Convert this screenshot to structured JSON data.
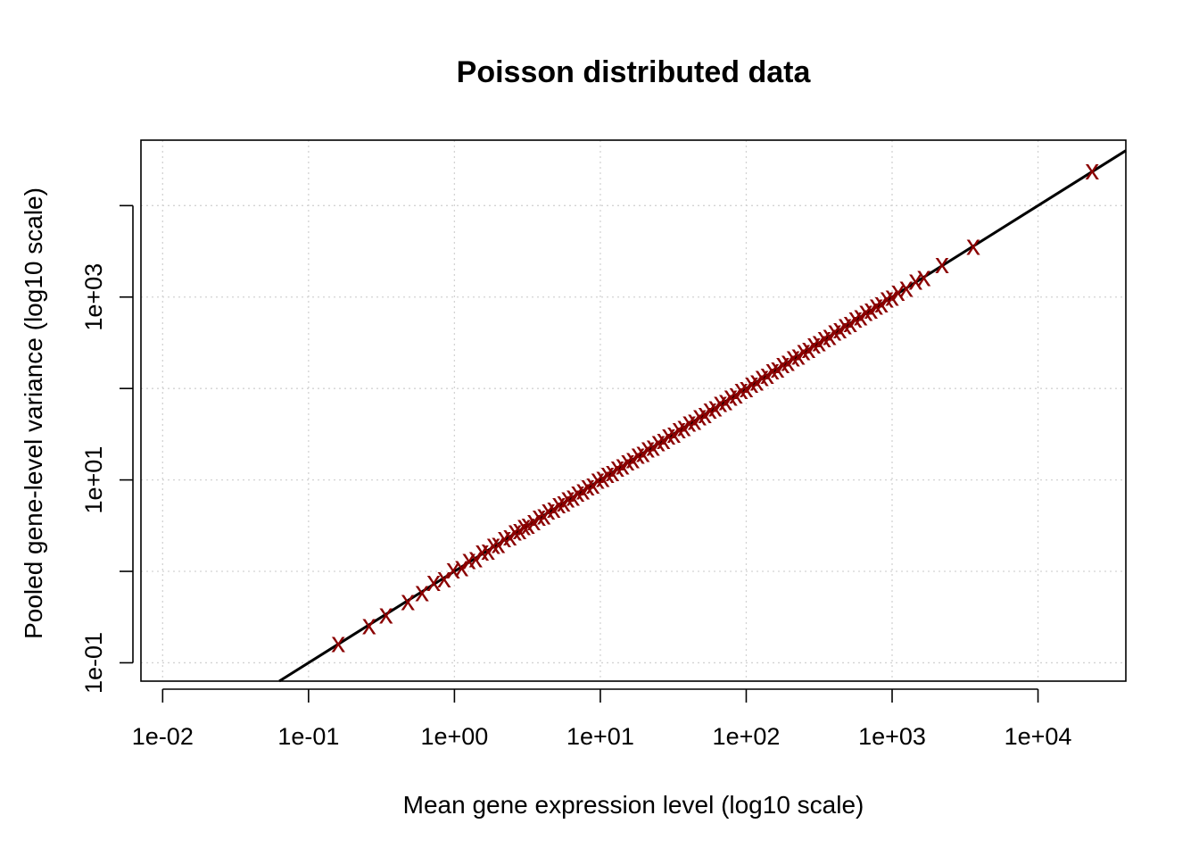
{
  "chart_data": {
    "type": "scatter",
    "title": "Poisson distributed data",
    "xlabel": "Mean gene expression level (log10 scale)",
    "ylabel": "Pooled gene-level variance (log10 scale)",
    "x_scale": "log10",
    "y_scale": "log10",
    "xlim": [
      0.0071,
      40000
    ],
    "ylim": [
      0.063,
      52000
    ],
    "x_ticks": [
      {
        "value": 0.01,
        "label": "1e-02"
      },
      {
        "value": 0.1,
        "label": "1e-01"
      },
      {
        "value": 1,
        "label": "1e+00"
      },
      {
        "value": 10,
        "label": "1e+01"
      },
      {
        "value": 100,
        "label": "1e+02"
      },
      {
        "value": 1000,
        "label": "1e+03"
      },
      {
        "value": 10000,
        "label": "1e+04"
      }
    ],
    "y_ticks": [
      {
        "value": 0.1,
        "label": "1e-01"
      },
      {
        "value": 1,
        "label": ""
      },
      {
        "value": 10,
        "label": "1e+01"
      },
      {
        "value": 100,
        "label": ""
      },
      {
        "value": 1000,
        "label": "1e+03"
      },
      {
        "value": 10000,
        "label": ""
      }
    ],
    "grid": true,
    "point_symbol": "x",
    "point_color": "#8b0000",
    "reference_line": {
      "slope": 1,
      "intercept": 0,
      "color": "#000000",
      "description": "variance = mean"
    },
    "series": [
      {
        "x": [
          0.16,
          0.26,
          0.34,
          0.48,
          0.6,
          0.72,
          0.85,
          0.98,
          1.12,
          1.26,
          1.4,
          1.55,
          1.7,
          1.85,
          2.0,
          2.2,
          2.4,
          2.6,
          2.8,
          3.0,
          3.2,
          3.5,
          3.8,
          4.1,
          4.4,
          4.8,
          5.2,
          5.6,
          6.0,
          6.5,
          7.0,
          7.6,
          8.2,
          8.9,
          9.6,
          10.4,
          11.2,
          12.1,
          13.1,
          14.2,
          15.4,
          16.7,
          18.1,
          19.6,
          21.2,
          23.0,
          25.0,
          27.1,
          29.4,
          31.9,
          34.6,
          37.5,
          40.7,
          44.2,
          48.0,
          52.1,
          56.5,
          61.3,
          66.5,
          72.2,
          78.4,
          85.1,
          92.4,
          100.3,
          108.9,
          118.2,
          128.3,
          139.3,
          151.2,
          164.1,
          178.1,
          193.3,
          209.8,
          227.7,
          247.1,
          268.2,
          291.1,
          316.0,
          343.0,
          372.3,
          404.1,
          438.6,
          476.0,
          516.7,
          560.8,
          608.7,
          660.7,
          717.1,
          778.3,
          845,
          920,
          1000,
          1100,
          1250,
          1450,
          1650,
          2200,
          3600,
          23500
        ],
        "y": [
          0.16,
          0.25,
          0.33,
          0.46,
          0.58,
          0.75,
          0.82,
          1.02,
          1.08,
          1.3,
          1.36,
          1.6,
          1.65,
          1.9,
          1.95,
          2.25,
          2.35,
          2.65,
          2.75,
          3.05,
          3.15,
          3.45,
          3.85,
          4.0,
          4.5,
          4.7,
          5.3,
          5.5,
          6.1,
          6.4,
          7.1,
          7.5,
          8.3,
          8.7,
          9.8,
          10.2,
          11.4,
          11.9,
          13.3,
          14.0,
          15.6,
          16.4,
          18.4,
          19.3,
          21.5,
          22.6,
          25.3,
          26.7,
          29.8,
          31.3,
          35.1,
          36.9,
          41.2,
          43.4,
          48.6,
          51.2,
          57.3,
          60.3,
          67.5,
          71.0,
          79.5,
          83.6,
          93.6,
          98.5,
          110.2,
          116.0,
          129.9,
          136.8,
          153.2,
          161.2,
          180.5,
          190.0,
          212.6,
          223.5,
          250.2,
          263.5,
          294.7,
          311.0,
          347.0,
          366.0,
          409.0,
          431.5,
          481.5,
          508.5,
          567.5,
          599.0,
          668.0,
          706.0,
          787.0,
          830,
          935,
          985,
          1110,
          1230,
          1470,
          1620,
          2230,
          3560,
          23800
        ]
      }
    ]
  }
}
